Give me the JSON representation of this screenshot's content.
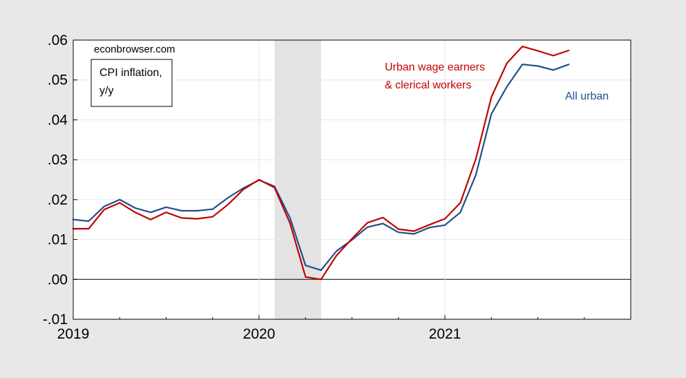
{
  "chart_data": {
    "type": "line",
    "source_note": "econbrowser.com",
    "legend_box": [
      "CPI inflation,",
      "y/y"
    ],
    "x_ticks": [
      "2019",
      "2020",
      "2021"
    ],
    "y_ticks": [
      ".06",
      ".05",
      ".04",
      ".03",
      ".02",
      ".01",
      ".00",
      "-.01"
    ],
    "ylim": [
      -0.01,
      0.06
    ],
    "x_range": [
      "2019-01",
      "2021-12"
    ],
    "grid": true,
    "recession_shading": {
      "start": "2020-02",
      "end": "2020-04",
      "color": "#e3e3e3"
    },
    "months": [
      "2019-01",
      "2019-02",
      "2019-03",
      "2019-04",
      "2019-05",
      "2019-06",
      "2019-07",
      "2019-08",
      "2019-09",
      "2019-10",
      "2019-11",
      "2019-12",
      "2020-01",
      "2020-02",
      "2020-03",
      "2020-04",
      "2020-05",
      "2020-06",
      "2020-07",
      "2020-08",
      "2020-09",
      "2020-10",
      "2020-11",
      "2020-12",
      "2021-01",
      "2021-02",
      "2021-03",
      "2021-04",
      "2021-05",
      "2021-06",
      "2021-07",
      "2021-08",
      "2021-09"
    ],
    "series": [
      {
        "name": "All urban",
        "label_lines": [
          "All urban"
        ],
        "color": "#1f4e8c",
        "values": [
          0.015,
          0.0146,
          0.0183,
          0.02,
          0.0179,
          0.0168,
          0.0181,
          0.0172,
          0.0172,
          0.0176,
          0.0205,
          0.0229,
          0.0249,
          0.0233,
          0.0154,
          0.0035,
          0.0023,
          0.0071,
          0.0099,
          0.0131,
          0.014,
          0.0118,
          0.0114,
          0.013,
          0.0136,
          0.0168,
          0.0262,
          0.0415,
          0.0483,
          0.0539,
          0.0535,
          0.0525,
          0.0539
        ]
      },
      {
        "name": "Urban wage earners & clerical workers",
        "label_lines": [
          "Urban wage earners",
          "& clerical workers"
        ],
        "color": "#c00000",
        "values": [
          0.0127,
          0.0127,
          0.0175,
          0.0192,
          0.0168,
          0.015,
          0.0168,
          0.0154,
          0.0152,
          0.0157,
          0.0188,
          0.0226,
          0.025,
          0.023,
          0.0141,
          0.0006,
          0.0,
          0.006,
          0.0102,
          0.0142,
          0.0155,
          0.0126,
          0.0121,
          0.0137,
          0.0152,
          0.0192,
          0.0302,
          0.0457,
          0.0542,
          0.0584,
          0.0573,
          0.0561,
          0.0574
        ]
      }
    ]
  }
}
